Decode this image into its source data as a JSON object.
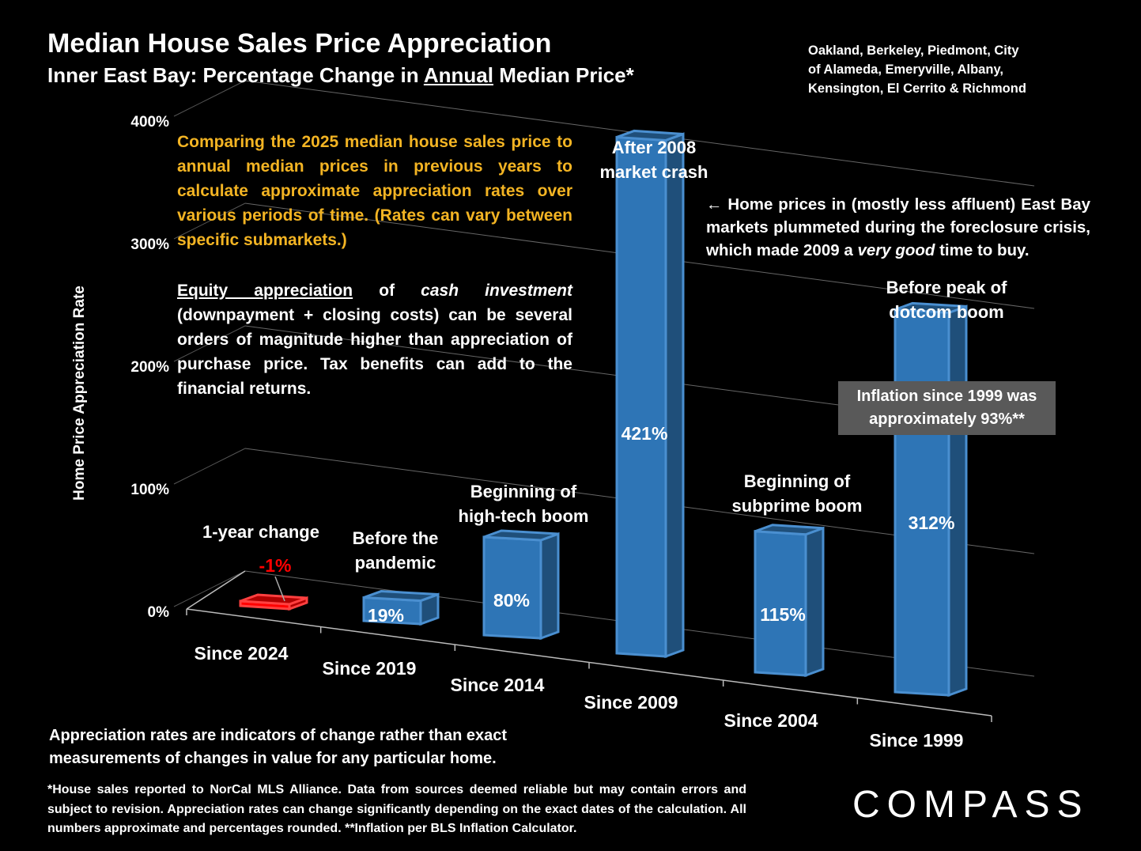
{
  "header": {
    "title": "Median House Sales Price Appreciation",
    "subtitle_pre": "Inner East Bay: Percentage Change in ",
    "subtitle_underlined": "Annual",
    "subtitle_post": " Median Price*",
    "region_line1": "Oakland, Berkeley, Piedmont, City",
    "region_line2": "of Alameda, Emeryville, Albany,",
    "region_line3": "Kensington, El Cerrito & Richmond"
  },
  "notes": {
    "para1": "Comparing the 2025 median house sales price to annual median prices in previous years to calculate approximate appreciation rates over various periods of time. (Rates can vary between specific submarkets.)",
    "para2_u": "Equity appreciation",
    "para2_a": " of ",
    "para2_i": "cash investment",
    "para2_b": " (downpayment + closing costs) can be several orders of magnitude higher than appreciation of purchase price. Tax benefits can add to the financial returns.",
    "crash_a": "← Home prices in (mostly less affluent) East Bay markets plummeted during the foreclosure crisis, which made 2009 a ",
    "crash_i": "very good",
    "crash_b": " time to buy.",
    "inflation_line1": "Inflation since 1999 was",
    "inflation_line2": "approximately 93%**",
    "bottom_line1": "Appreciation rates are indicators of change rather than exact",
    "bottom_line2": "measurements of changes in value for any particular home.",
    "footnote": "*House sales reported to NorCal MLS Alliance. Data from sources deemed reliable but may contain errors and subject to revision. Appreciation rates can change significantly depending on the exact dates of the calculation. All numbers approximate and percentages rounded. **Inflation per BLS Inflation Calculator.",
    "logo": "COMPASS"
  },
  "chart_data": {
    "type": "bar",
    "title": "Median House Sales Price Appreciation",
    "ylabel": "Home Price Appreciation Rate",
    "xlabel": "",
    "ylim": [
      0,
      400
    ],
    "yticks": [
      "0%",
      "100%",
      "200%",
      "300%",
      "400%"
    ],
    "categories": [
      "Since 2024",
      "Since 2019",
      "Since 2014",
      "Since 2009",
      "Since 2004",
      "Since 1999"
    ],
    "values": [
      -1,
      19,
      80,
      421,
      115,
      312
    ],
    "data_labels": [
      "-1%",
      "19%",
      "80%",
      "421%",
      "115%",
      "312%"
    ],
    "annotations": [
      [
        "1-year change"
      ],
      [
        "Before the",
        "pandemic"
      ],
      [
        "Beginning of",
        "high-tech boom"
      ],
      [
        "After 2008",
        "market crash"
      ],
      [
        "Beginning of",
        "subprime boom"
      ],
      [
        "Before peak of",
        "dotcom boom"
      ]
    ],
    "colors": {
      "positive": "#2e75b6",
      "negative": "#ff0000",
      "text": "#ffffff",
      "negative_label": "#ff0000"
    }
  }
}
